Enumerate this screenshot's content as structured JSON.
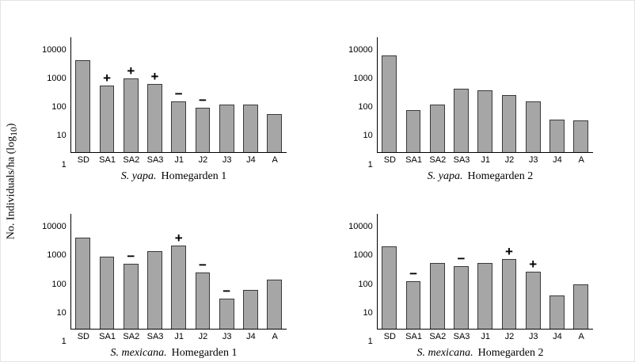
{
  "ylabel": {
    "pre": "No. Individuals/ha (log",
    "sub": "10",
    "post": ")"
  },
  "colors": {
    "bar_fill": "#a6a6a6",
    "bar_border": "#3a3a3a",
    "axis": "#000000"
  },
  "chart_data": [
    {
      "type": "bar",
      "species": "S. yapa.",
      "location": "Homegarden 1",
      "categories": [
        "SD",
        "SA1",
        "SA2",
        "SA3",
        "J1",
        "J2",
        "J3",
        "J4",
        "A"
      ],
      "values": [
        1500,
        200,
        350,
        230,
        55,
        33,
        45,
        45,
        20
      ],
      "annotations": [
        "",
        "+",
        "+",
        "+",
        "−",
        "−",
        "",
        "",
        ""
      ],
      "ylim": [
        1,
        10000
      ],
      "yticks": [
        1,
        10,
        100,
        1000,
        10000
      ],
      "yscale": "log",
      "grid": false,
      "legend": false
    },
    {
      "type": "bar",
      "species": "S. yapa.",
      "location": "Homegarden 2",
      "categories": [
        "SD",
        "SA1",
        "SA2",
        "SA3",
        "J1",
        "J2",
        "J3",
        "J4",
        "A"
      ],
      "values": [
        2300,
        28,
        45,
        160,
        140,
        95,
        55,
        13,
        12
      ],
      "annotations": [
        "",
        "",
        "",
        "",
        "",
        "",
        "",
        "",
        ""
      ],
      "ylim": [
        1,
        10000
      ],
      "yticks": [
        1,
        10,
        100,
        1000,
        10000
      ],
      "yscale": "log",
      "grid": false,
      "legend": false
    },
    {
      "type": "bar",
      "species": "S. mexicana.",
      "location": "Homegarden 1",
      "categories": [
        "SD",
        "SA1",
        "SA2",
        "SA3",
        "J1",
        "J2",
        "J3",
        "J4",
        "A"
      ],
      "values": [
        1500,
        320,
        180,
        520,
        800,
        90,
        11,
        22,
        50
      ],
      "annotations": [
        "",
        "",
        "−",
        "",
        "+",
        "−",
        "−",
        "",
        ""
      ],
      "ylim": [
        1,
        10000
      ],
      "yticks": [
        1,
        10,
        100,
        1000,
        10000
      ],
      "yscale": "log",
      "grid": false,
      "legend": false
    },
    {
      "type": "bar",
      "species": "S. mexicana.",
      "location": "Homegarden 2",
      "categories": [
        "SD",
        "SA1",
        "SA2",
        "SA3",
        "J1",
        "J2",
        "J3",
        "J4",
        "A"
      ],
      "values": [
        750,
        45,
        200,
        150,
        200,
        270,
        100,
        14,
        35
      ],
      "annotations": [
        "",
        "−",
        "",
        "−",
        "",
        "+",
        "+",
        "",
        ""
      ],
      "ylim": [
        1,
        10000
      ],
      "yticks": [
        1,
        10,
        100,
        1000,
        10000
      ],
      "yscale": "log",
      "grid": false,
      "legend": false
    }
  ]
}
